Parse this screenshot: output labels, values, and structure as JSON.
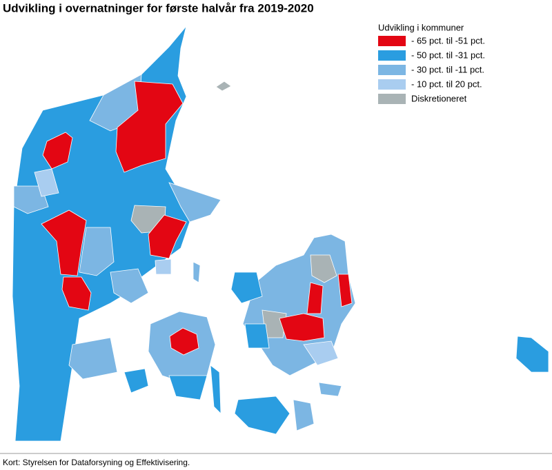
{
  "title": "Udvikling i overnatninger for første halvår fra 2019-2020",
  "legend": {
    "title": "Udvikling i kommuner",
    "items": [
      {
        "label": "- 65 pct. til -51 pct.",
        "color": "#e30613"
      },
      {
        "label": "- 50 pct. til -31 pct.",
        "color": "#2a9de0"
      },
      {
        "label": "- 30 pct. til -11 pct.",
        "color": "#7cb6e3"
      },
      {
        "label": "- 10 pct. til 20 pct.",
        "color": "#a9cdf0"
      },
      {
        "label": "Diskretioneret",
        "color": "#a9b3b5"
      }
    ]
  },
  "source": "Kort: Styrelsen for Dataforsyning og Effektivisering."
}
